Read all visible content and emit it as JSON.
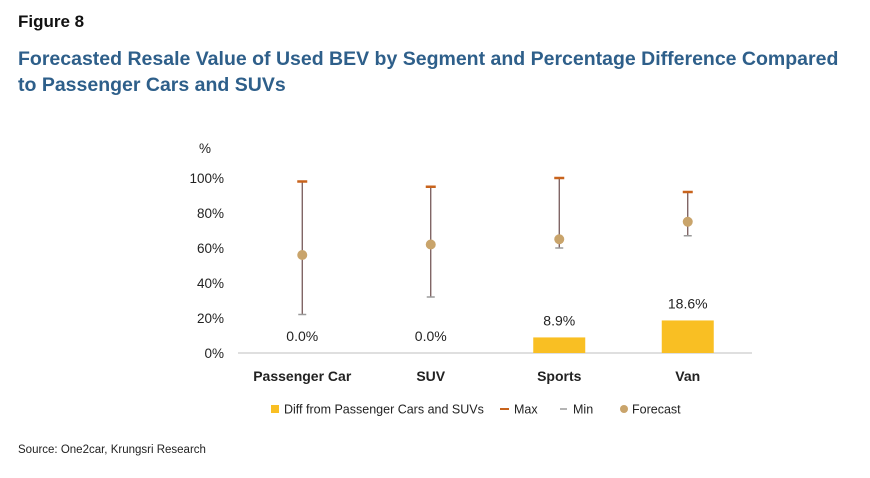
{
  "figure_label": "Figure 8",
  "title": "Forecasted Resale Value of Used BEV by Segment and Percentage Difference Compared to Passenger Cars and SUVs",
  "source": "Source: One2car, Krungsri Research",
  "colors": {
    "bar": "#f9bf23",
    "max": "#c8631c",
    "min": "#9a9a9a",
    "forecast": "#c9a46b",
    "whisker": "#6b4b4b",
    "title": "#2e5f8a"
  },
  "chart_data": {
    "type": "bar",
    "categories": [
      "Passenger Car",
      "SUV",
      "Sports",
      "Van"
    ],
    "ylabel": "%",
    "ylim": [
      0,
      100
    ],
    "yticks": [
      "0%",
      "20%",
      "40%",
      "60%",
      "80%",
      "100%"
    ],
    "grid": false,
    "legend_position": "bottom",
    "series": [
      {
        "name": "Diff from Passenger Cars and SUVs",
        "kind": "bar",
        "values": [
          0.0,
          0.0,
          8.9,
          18.6
        ],
        "labels": [
          "0.0%",
          "0.0%",
          "8.9%",
          "18.6%"
        ]
      },
      {
        "name": "Max",
        "kind": "marker-dash",
        "values": [
          98,
          95,
          100,
          92
        ]
      },
      {
        "name": "Min",
        "kind": "marker-dash",
        "values": [
          22,
          32,
          60,
          67
        ]
      },
      {
        "name": "Forecast",
        "kind": "marker-dot",
        "values": [
          56,
          62,
          65,
          75
        ]
      }
    ]
  }
}
